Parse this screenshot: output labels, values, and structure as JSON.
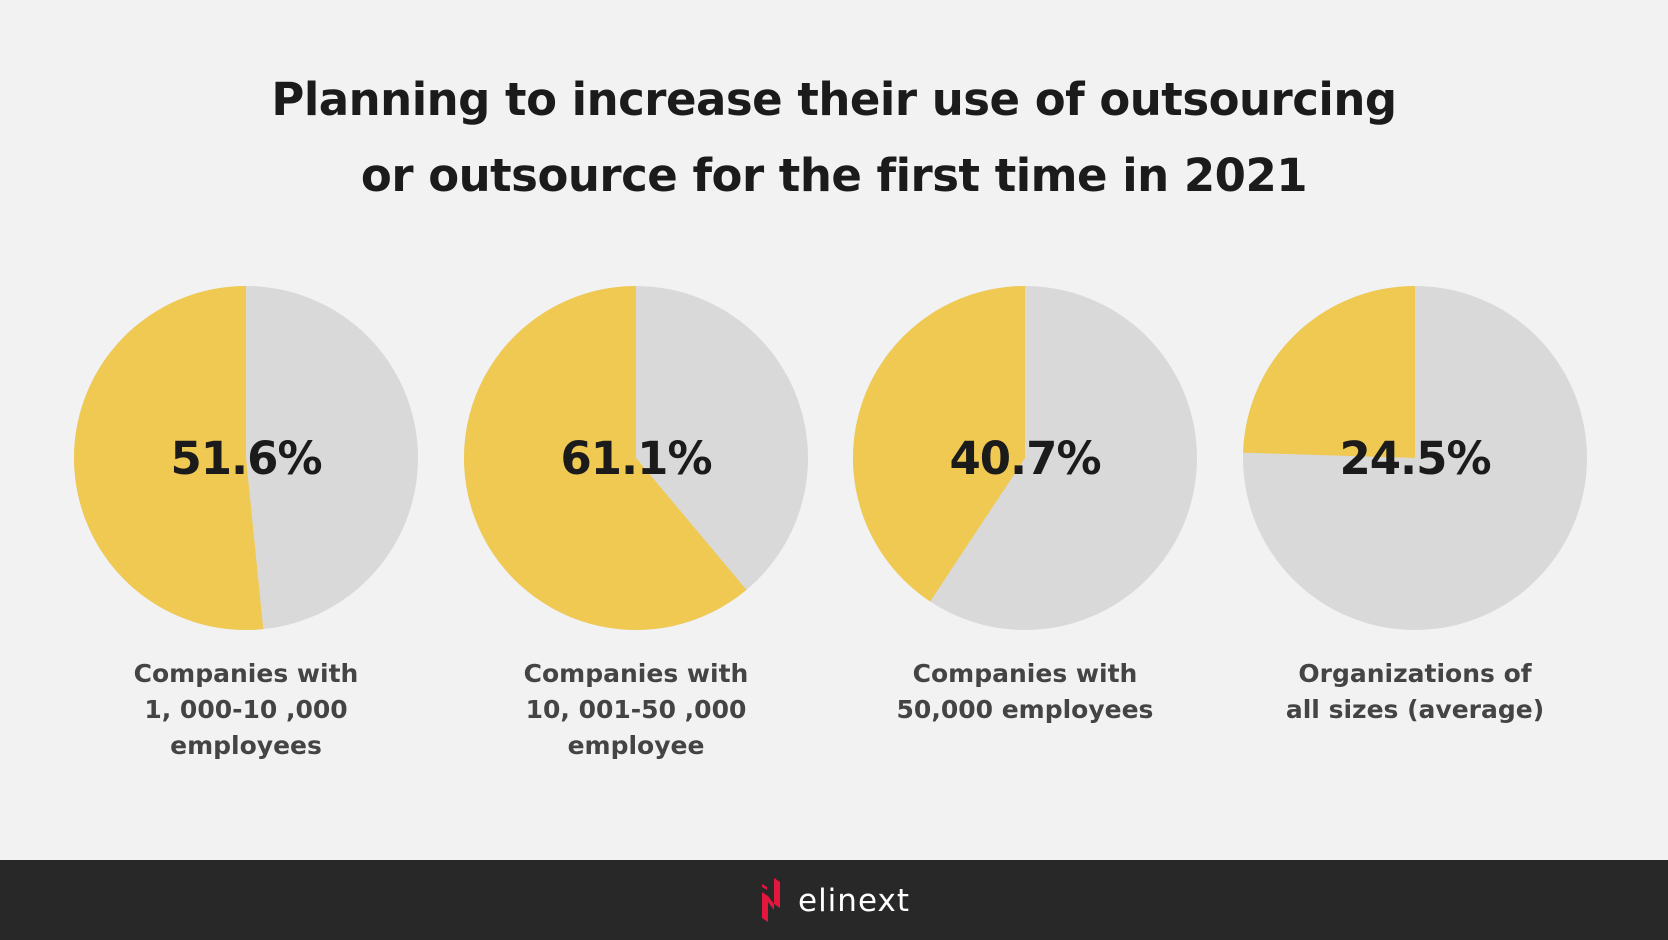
{
  "title_lines": [
    "Planning to increase their use of outsourcing",
    "or outsource for the first time in 2021"
  ],
  "colors": {
    "primary": "#efc952",
    "remainder": "#d9d9d9",
    "background": "#f2f2f2",
    "footer": "#282828",
    "brand_red": "#e3173e"
  },
  "chart_data": {
    "type": "pie",
    "title": "Planning to increase their use of outsourcing or outsource for the first time in 2021",
    "charts": [
      {
        "label": "51.6%",
        "value": 51.6,
        "caption": [
          "Companies with",
          "1, 000-10 ,000",
          "employees"
        ]
      },
      {
        "label": "61.1%",
        "value": 61.1,
        "caption": [
          "Companies with",
          "10, 001-50 ,000",
          "employee"
        ]
      },
      {
        "label": "40.7%",
        "value": 40.7,
        "caption": [
          "Companies with",
          "50,000 employees"
        ]
      },
      {
        "label": "24.5%",
        "value": 24.5,
        "caption": [
          "Organizations of",
          "all sizes (average)"
        ]
      }
    ],
    "legend": "none"
  },
  "footer": {
    "brand": "elinext"
  }
}
